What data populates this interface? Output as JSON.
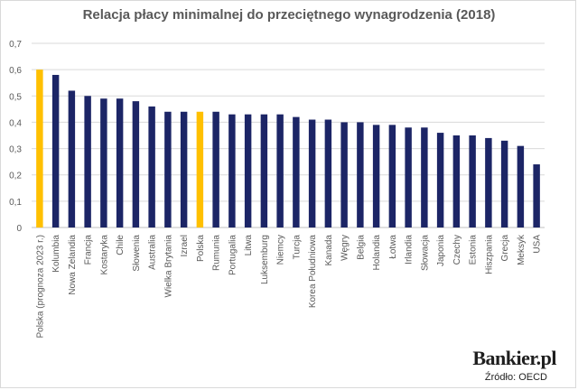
{
  "chart_data": {
    "type": "bar",
    "title": "Relacja płacy minimalnej do przeciętnego wynagrodzenia (2018)",
    "xlabel": "",
    "ylabel": "",
    "ylim": [
      0,
      0.7
    ],
    "yticks": [
      "0",
      "0,1",
      "0,2",
      "0,3",
      "0,4",
      "0,5",
      "0,6",
      "0,7"
    ],
    "grid": true,
    "categories": [
      "Polska (prognoza 2023 r.)",
      "Kolumbia",
      "Nowa Zelandia",
      "Francja",
      "Kostaryka",
      "Chile",
      "Słowenia",
      "Australia",
      "Wielka Brytania",
      "Izrael",
      "Polska",
      "Rumunia",
      "Portugalia",
      "Litwa",
      "Luksemburg",
      "Niemcy",
      "Turcja",
      "Korea Południowa",
      "Kanada",
      "Węgry",
      "Belgia",
      "Holandia",
      "Łotwa",
      "Irlandia",
      "Słowacja",
      "Japonia",
      "Czechy",
      "Estonia",
      "Hiszpania",
      "Grecja",
      "Meksyk",
      "USA"
    ],
    "values": [
      0.6,
      0.58,
      0.52,
      0.5,
      0.49,
      0.49,
      0.48,
      0.46,
      0.44,
      0.44,
      0.44,
      0.44,
      0.43,
      0.43,
      0.43,
      0.43,
      0.42,
      0.41,
      0.41,
      0.4,
      0.4,
      0.39,
      0.39,
      0.38,
      0.38,
      0.36,
      0.35,
      0.35,
      0.34,
      0.33,
      0.31,
      0.24
    ],
    "highlight": [
      "Polska (prognoza 2023 r.)",
      "Polska"
    ],
    "colors": {
      "bar": "#1c2566",
      "highlight": "#ffc000",
      "grid": "#d9d9d9",
      "text": "#595959"
    }
  },
  "brand": "Bankier.pl",
  "source": "Źródło: OECD"
}
